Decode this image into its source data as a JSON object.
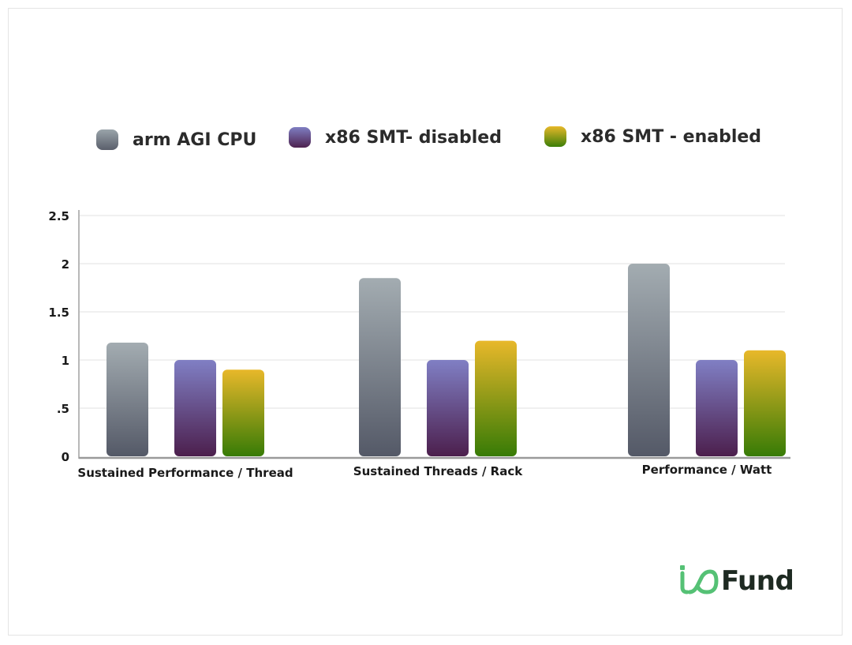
{
  "legend": [
    {
      "label": "arm AGI CPU",
      "color": "#6f7782"
    },
    {
      "label": "x86 SMT- disabled",
      "color": "#6b4f94"
    },
    {
      "label": "x86 SMT - enabled",
      "color": "#9fae1a"
    }
  ],
  "brand": {
    "logo_text": "Fund",
    "logo_mark_color": "#55c175"
  },
  "chart_data": {
    "type": "bar",
    "title": "",
    "xlabel": "",
    "ylabel": "",
    "categories": [
      "Sustained Performance / Thread",
      "Sustained Threads / Rack",
      "Performance / Watt"
    ],
    "series": [
      {
        "name": "arm AGI CPU",
        "values": [
          1.18,
          1.85,
          2.0
        ]
      },
      {
        "name": "x86 SMT- disabled",
        "values": [
          1.0,
          1.0,
          1.0
        ]
      },
      {
        "name": "x86 SMT - enabled",
        "values": [
          0.9,
          1.2,
          1.1
        ]
      }
    ],
    "yticks": [
      "0",
      ".5",
      "1",
      "1.5",
      "2",
      "2.5"
    ],
    "ytick_values": [
      0,
      0.5,
      1,
      1.5,
      2,
      2.5
    ],
    "ylim": [
      0,
      2.5
    ],
    "grid": true,
    "legend_position": "top"
  }
}
